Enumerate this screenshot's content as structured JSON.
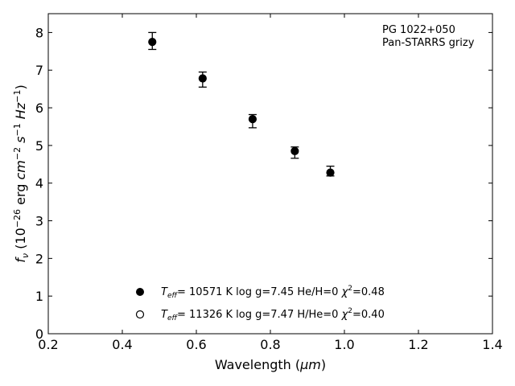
{
  "chart_data": {
    "type": "scatter",
    "title": "",
    "annotation": [
      "PG 1022+050",
      "Pan-STARRS grizy"
    ],
    "xlabel": {
      "prefix": "Wavelength (",
      "unit": "μm",
      "suffix": ")"
    },
    "ylabel": {
      "sym": "f",
      "sub": "ν",
      "p1": " (10",
      "exp1": "−26",
      "p2": " erg ",
      "u1": "cm",
      "exp2": "−2",
      "u2": " s",
      "exp3": "−1",
      "u3": " Hz",
      "exp4": "−1",
      "p3": ")"
    },
    "xlim": [
      0.2,
      1.4
    ],
    "ylim": [
      0,
      8.5
    ],
    "xticks": [
      "0.2",
      "0.4",
      "0.6",
      "0.8",
      "1.0",
      "1.2",
      "1.4"
    ],
    "yticks": [
      "0",
      "1",
      "2",
      "3",
      "4",
      "5",
      "6",
      "7",
      "8"
    ],
    "grid": false,
    "legend_position": "lower-center",
    "series": [
      {
        "name": "Teff= 10571 K  log g=7.45  He/H=0  χ2=0.48",
        "marker": "filled-circle",
        "color": "#000000",
        "points": [
          {
            "x": 0.481,
            "y": 7.75,
            "yerr_low": 7.55,
            "yerr_high": 8.0
          },
          {
            "x": 0.617,
            "y": 6.78,
            "yerr_low": 6.55,
            "yerr_high": 6.95
          },
          {
            "x": 0.752,
            "y": 5.7,
            "yerr_low": 5.47,
            "yerr_high": 5.82
          },
          {
            "x": 0.866,
            "y": 4.85,
            "yerr_low": 4.66,
            "yerr_high": 4.96
          },
          {
            "x": 0.962,
            "y": 4.28,
            "yerr_low": 4.19,
            "yerr_high": 4.45
          }
        ]
      },
      {
        "name": "Teff= 11326 K  log g=7.47  H/He=0  χ2=0.40",
        "marker": "open-circle",
        "color": "#000000",
        "points": []
      }
    ],
    "legend_entries": [
      {
        "t_sym": "T",
        "t_sub": "eff",
        "rest1": "= 10571 K  log g=7.45  He/H=0  ",
        "chi": "χ",
        "chi_exp": "2",
        "rest2": "=0.48"
      },
      {
        "t_sym": "T",
        "t_sub": "eff",
        "rest1": "= 11326 K  log g=7.47  H/He=0  ",
        "chi": "χ",
        "chi_exp": "2",
        "rest2": "=0.40"
      }
    ]
  }
}
